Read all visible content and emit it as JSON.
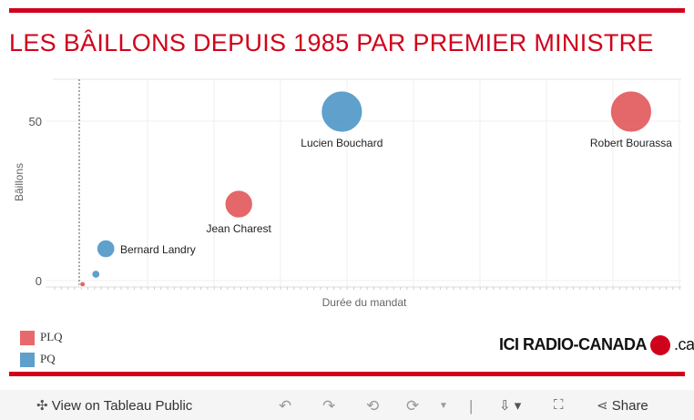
{
  "title": "LES BÂILLONS DEPUIS 1985 PAR PREMIER MINISTRE",
  "chart_data": {
    "type": "scatter",
    "xlabel": "Durée du mandat",
    "ylabel": "Bâillons",
    "yticks": [
      0,
      50
    ],
    "ylim": [
      -2,
      63
    ],
    "xlim": [
      -0.4,
      9
    ],
    "grid": true,
    "points": [
      {
        "label": "",
        "party": "PLQ",
        "x": 0.05,
        "y": 0
      },
      {
        "label": "",
        "party": "PQ",
        "x": 0.25,
        "y": 2
      },
      {
        "label": "Bernard Landry",
        "party": "PQ",
        "x": 0.4,
        "y": 10
      },
      {
        "label": "Jean Charest",
        "party": "PLQ",
        "x": 2.4,
        "y": 24
      },
      {
        "label": "Lucien Bouchard",
        "party": "PQ",
        "x": 3.95,
        "y": 53
      },
      {
        "label": "Robert Bourassa",
        "party": "PLQ",
        "x": 8.3,
        "y": 53
      }
    ],
    "colors": {
      "PLQ": "#e15759",
      "PQ": "#4e96c8"
    }
  },
  "legend": [
    {
      "label": "PLQ",
      "color": "#e8696b"
    },
    {
      "label": "PQ",
      "color": "#5f9fcc"
    }
  ],
  "logo": {
    "text1": "ICI RADIO-CANADA",
    "text2": ".ca"
  },
  "toolbar": {
    "view": "View on Tableau Public",
    "share": "Share"
  }
}
